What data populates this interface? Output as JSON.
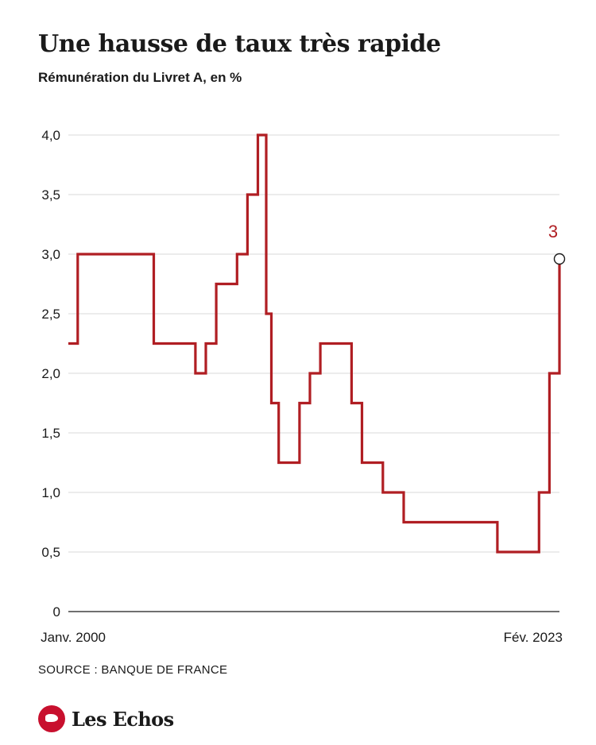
{
  "header": {
    "title": "Une hausse de taux très rapide",
    "subtitle": "Rémunération du Livret A, en %"
  },
  "footer": {
    "source": "SOURCE : BANQUE DE FRANCE",
    "brand": "Les Echos"
  },
  "colors": {
    "line": "#b01e23",
    "grid": "#d9d9d9",
    "axis": "#1a1a1a"
  },
  "chart_data": {
    "type": "line",
    "step": true,
    "title": "Une hausse de taux très rapide",
    "subtitle": "Rémunération du Livret A, en %",
    "xlim": [
      1999.5,
      2023.08
    ],
    "ylim": [
      0,
      4
    ],
    "y_ticks": [
      0,
      0.5,
      1,
      1.5,
      2,
      2.5,
      3,
      3.5,
      4
    ],
    "y_tick_labels": [
      "0",
      "0,5",
      "1,0",
      "1,5",
      "2,0",
      "2,5",
      "3,0",
      "3,5",
      "4,0"
    ],
    "x_tick_labels": [
      {
        "x": 2000.0,
        "label": "Janv. 2000"
      },
      {
        "x": 2023.08,
        "label": "Fév. 2023"
      }
    ],
    "grid": true,
    "legend": "none",
    "series": [
      {
        "points": [
          {
            "x": 1999.5,
            "y": 2.25
          },
          {
            "x": 1999.95,
            "y": 3.0
          },
          {
            "x": 2003.6,
            "y": 2.25
          },
          {
            "x": 2005.6,
            "y": 2.0
          },
          {
            "x": 2006.1,
            "y": 2.25
          },
          {
            "x": 2006.6,
            "y": 2.75
          },
          {
            "x": 2007.6,
            "y": 3.0
          },
          {
            "x": 2008.1,
            "y": 3.5
          },
          {
            "x": 2008.6,
            "y": 4.0
          },
          {
            "x": 2009.0,
            "y": 2.5
          },
          {
            "x": 2009.25,
            "y": 1.75
          },
          {
            "x": 2009.6,
            "y": 1.25
          },
          {
            "x": 2010.6,
            "y": 1.75
          },
          {
            "x": 2011.1,
            "y": 2.0
          },
          {
            "x": 2011.6,
            "y": 2.25
          },
          {
            "x": 2013.1,
            "y": 1.75
          },
          {
            "x": 2013.6,
            "y": 1.25
          },
          {
            "x": 2014.6,
            "y": 1.0
          },
          {
            "x": 2015.6,
            "y": 0.75
          },
          {
            "x": 2020.1,
            "y": 0.5
          },
          {
            "x": 2022.1,
            "y": 1.0
          },
          {
            "x": 2022.6,
            "y": 2.0
          },
          {
            "x": 2023.08,
            "y": 3.0
          }
        ]
      }
    ],
    "annotations": [
      {
        "x": 2023.08,
        "y": 3.0,
        "text": "3"
      }
    ]
  }
}
